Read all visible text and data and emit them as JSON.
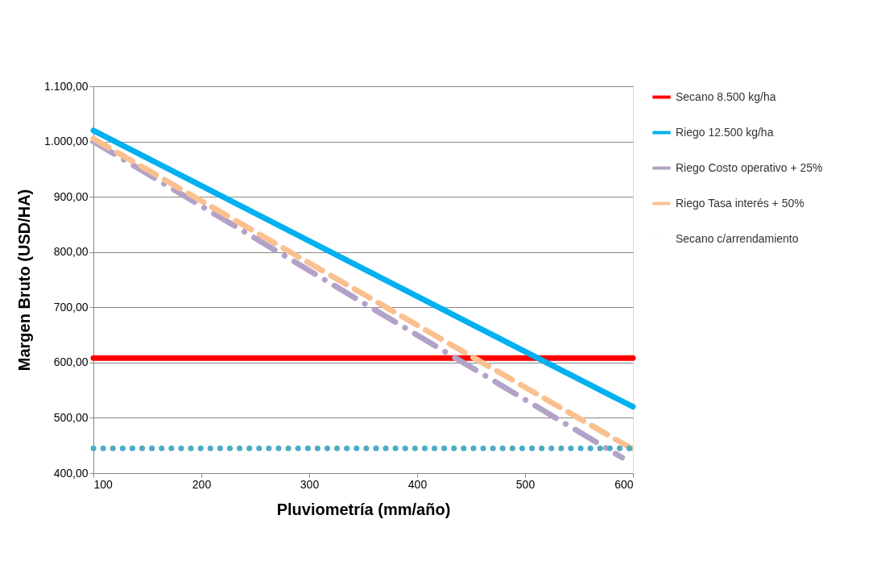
{
  "chart_data": {
    "type": "line",
    "xlabel": "Pluviometría (mm/año)",
    "ylabel": "Margen Bruto (USD/HA)",
    "xlim": [
      100,
      600
    ],
    "xticks": [
      100,
      200,
      300,
      400,
      500,
      600
    ],
    "ylim": [
      400,
      1100
    ],
    "yticks": [
      {
        "value": 400,
        "label": "400,00"
      },
      {
        "value": 500,
        "label": "500,00"
      },
      {
        "value": 600,
        "label": "600,00"
      },
      {
        "value": 700,
        "label": "700,00"
      },
      {
        "value": 800,
        "label": "800,00"
      },
      {
        "value": 900,
        "label": "900,00"
      },
      {
        "value": 1000,
        "label": "1.000,00"
      },
      {
        "value": 1100,
        "label": "1.100,00"
      }
    ],
    "grid": "y",
    "legend": "right",
    "marker": "none",
    "series": [
      {
        "name": "Secano 8.500 kg/ha",
        "color": "#ff0000",
        "line_style": "solid",
        "x": [
          100,
          600
        ],
        "values": [
          608,
          608
        ]
      },
      {
        "name": "Riego 12.500 kg/ha",
        "color": "#00b0f0",
        "line_style": "solid",
        "x": [
          100,
          600
        ],
        "values": [
          1020,
          520
        ]
      },
      {
        "name": "Riego Costo operativo + 25%",
        "color": "#b3a2c7",
        "line_style": "dashdot",
        "x": [
          100,
          590
        ],
        "values": [
          1000,
          428
        ]
      },
      {
        "name": "Riego Tasa interés + 50%",
        "color": "#fac090",
        "line_style": "dashed",
        "x": [
          100,
          600
        ],
        "values": [
          1005,
          443
        ]
      },
      {
        "name": "Secano c/arrendamiento",
        "color": "#4bacc6",
        "line_style": "dotted",
        "x": [
          100,
          600
        ],
        "values": [
          445,
          445
        ]
      }
    ]
  }
}
